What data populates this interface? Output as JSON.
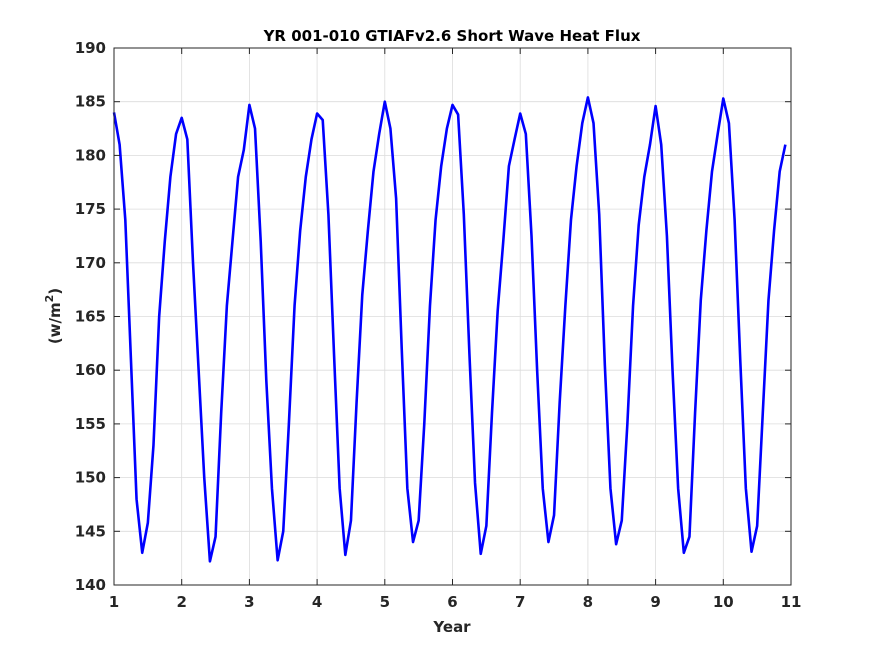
{
  "chart_data": {
    "type": "line",
    "title": "YR 001-010 GTIAFv2.6 Short Wave Heat Flux",
    "xlabel": "Year",
    "ylabel_main": "(w/m",
    "ylabel_sup": "2",
    "ylabel_close": ")",
    "xlim": [
      1,
      11
    ],
    "ylim": [
      140,
      190
    ],
    "xticks": [
      1,
      2,
      3,
      4,
      5,
      6,
      7,
      8,
      9,
      10,
      11
    ],
    "yticks": [
      140,
      145,
      150,
      155,
      160,
      165,
      170,
      175,
      180,
      185,
      190
    ],
    "grid": true,
    "line_color": "#0000ff",
    "series": [
      {
        "x": [
          1.0,
          1.083,
          1.167,
          1.25,
          1.333,
          1.417,
          1.5,
          1.583,
          1.667,
          1.75,
          1.833,
          1.917,
          2.0,
          2.083,
          2.167,
          2.25,
          2.333,
          2.417,
          2.5,
          2.583,
          2.667,
          2.75,
          2.833,
          2.917,
          3.0,
          3.083,
          3.167,
          3.25,
          3.333,
          3.417,
          3.5,
          3.583,
          3.667,
          3.75,
          3.833,
          3.917,
          4.0,
          4.083,
          4.167,
          4.25,
          4.333,
          4.417,
          4.5,
          4.583,
          4.667,
          4.75,
          4.833,
          4.917,
          5.0,
          5.083,
          5.167,
          5.25,
          5.333,
          5.417,
          5.5,
          5.583,
          5.667,
          5.75,
          5.833,
          5.917,
          6.0,
          6.083,
          6.167,
          6.25,
          6.333,
          6.417,
          6.5,
          6.583,
          6.667,
          6.75,
          6.833,
          6.917,
          7.0,
          7.083,
          7.167,
          7.25,
          7.333,
          7.417,
          7.5,
          7.583,
          7.667,
          7.75,
          7.833,
          7.917,
          8.0,
          8.083,
          8.167,
          8.25,
          8.333,
          8.417,
          8.5,
          8.583,
          8.667,
          8.75,
          8.833,
          8.917,
          9.0,
          9.083,
          9.167,
          9.25,
          9.333,
          9.417,
          9.5,
          9.583,
          9.667,
          9.75,
          9.833,
          9.917,
          10.0,
          10.083,
          10.167,
          10.25,
          10.333,
          10.417,
          10.5,
          10.583,
          10.667,
          10.75,
          10.833,
          10.917
        ],
        "values": [
          184.0,
          181.0,
          174.0,
          161.0,
          148.0,
          143.0,
          145.8,
          153.0,
          165.0,
          172.0,
          178.0,
          182.0,
          183.5,
          181.5,
          170.0,
          160.0,
          150.0,
          142.2,
          144.5,
          156.0,
          166.0,
          172.0,
          178.0,
          180.5,
          184.7,
          182.5,
          172.0,
          159.0,
          149.0,
          142.3,
          145.0,
          155.0,
          166.0,
          173.0,
          178.0,
          181.5,
          183.9,
          183.3,
          174.5,
          161.5,
          149.0,
          142.8,
          146.0,
          157.0,
          167.0,
          173.0,
          178.5,
          182.0,
          185.0,
          182.5,
          176.0,
          162.0,
          149.0,
          144.0,
          146.0,
          155.0,
          166.0,
          174.0,
          179.0,
          182.5,
          184.7,
          183.8,
          174.5,
          161.5,
          149.5,
          142.9,
          145.5,
          156.0,
          165.5,
          172.0,
          179.0,
          181.5,
          183.9,
          182.0,
          172.5,
          160.0,
          149.0,
          144.0,
          146.5,
          157.0,
          166.0,
          174.0,
          179.0,
          183.0,
          185.4,
          183.0,
          174.5,
          160.5,
          149.0,
          143.8,
          146.0,
          155.0,
          166.0,
          173.5,
          178.0,
          181.0,
          184.6,
          181.0,
          172.5,
          160.0,
          149.0,
          143.0,
          144.5,
          156.0,
          166.5,
          173.0,
          178.5,
          182.0,
          185.3,
          183.0,
          174.0,
          161.0,
          149.0,
          143.1,
          145.5,
          156.0,
          166.5,
          173.0,
          178.5,
          181.0
        ]
      }
    ]
  }
}
